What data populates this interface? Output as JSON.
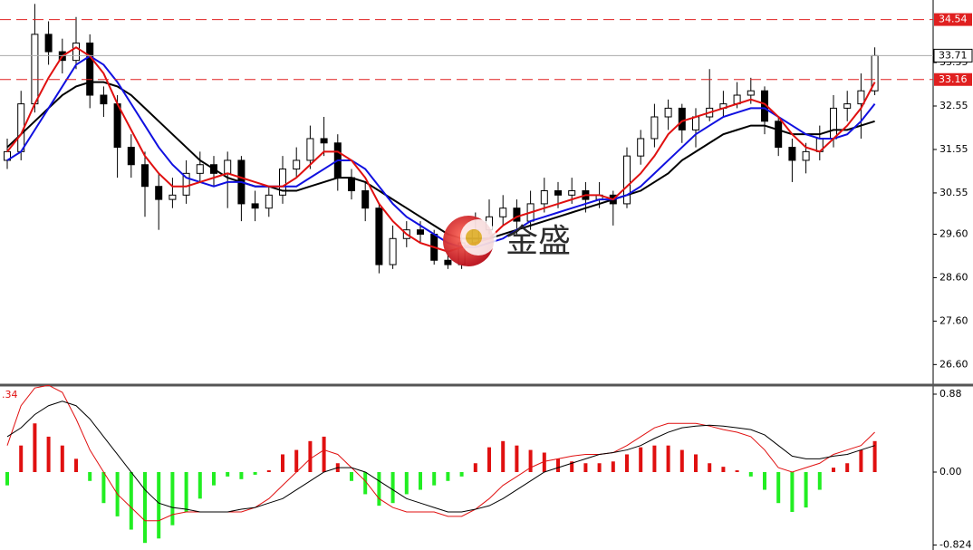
{
  "chart_data": [
    {
      "type": "candlestick",
      "watermark": "金盛",
      "up_color": "#ffffff",
      "down_color": "#000000",
      "ylim": [
        26.19,
        34.99
      ],
      "yticks": [
        {
          "value": 26.6,
          "label": "26.60"
        },
        {
          "value": 27.6,
          "label": "27.60"
        },
        {
          "value": 28.6,
          "label": "28.60"
        },
        {
          "value": 29.6,
          "label": "29.60"
        },
        {
          "value": 30.55,
          "label": "30.55"
        },
        {
          "value": 31.55,
          "label": "31.55"
        },
        {
          "value": 32.55,
          "label": "32.55"
        },
        {
          "value": 33.55,
          "label": "33.55"
        }
      ],
      "hlines": [
        {
          "value": 34.54,
          "color": "#e02020"
        },
        {
          "value": 33.16,
          "color": "#e02020"
        }
      ],
      "last": {
        "value": 33.71,
        "color": "#000000"
      },
      "open": [
        31.3,
        31.5,
        32.6,
        34.2,
        33.8,
        33.6,
        34.0,
        32.8,
        32.6,
        31.6,
        31.2,
        30.7,
        30.4,
        30.5,
        31.0,
        31.2,
        31.0,
        31.3,
        30.3,
        30.2,
        30.5,
        31.1,
        31.3,
        31.8,
        31.7,
        30.9,
        30.6,
        30.2,
        28.9,
        29.5,
        29.7,
        29.6,
        29.0,
        28.9,
        29.4,
        29.7,
        30.0,
        30.2,
        29.9,
        30.3,
        30.6,
        30.5,
        30.6,
        30.4,
        30.5,
        30.3,
        31.4,
        31.8,
        32.3,
        32.5,
        32.0,
        32.3,
        32.5,
        32.6,
        32.8,
        32.9,
        32.2,
        31.6,
        31.3,
        31.5,
        31.8,
        32.5,
        32.6,
        32.9
      ],
      "high": [
        31.8,
        32.9,
        34.9,
        34.5,
        34.1,
        34.6,
        34.2,
        33.0,
        32.8,
        31.9,
        31.5,
        31.0,
        30.9,
        31.3,
        31.5,
        31.4,
        31.5,
        31.4,
        30.6,
        30.7,
        31.4,
        31.6,
        32.1,
        32.3,
        31.9,
        31.1,
        30.8,
        30.3,
        29.8,
        29.9,
        29.9,
        29.7,
        29.2,
        29.6,
        30.1,
        30.4,
        30.5,
        30.4,
        30.6,
        30.9,
        30.8,
        30.9,
        30.8,
        30.8,
        30.6,
        31.6,
        32.0,
        32.6,
        32.7,
        32.6,
        32.5,
        33.4,
        32.9,
        33.1,
        33.2,
        33.0,
        32.3,
        31.8,
        31.7,
        32.1,
        32.8,
        32.9,
        33.3,
        33.9
      ],
      "low": [
        31.1,
        31.3,
        32.4,
        33.5,
        33.3,
        33.4,
        32.5,
        32.3,
        30.9,
        30.9,
        30.0,
        29.7,
        30.2,
        30.3,
        30.8,
        30.7,
        30.2,
        29.9,
        29.9,
        30.0,
        30.3,
        30.9,
        31.1,
        31.4,
        30.6,
        30.4,
        29.9,
        28.7,
        28.8,
        29.3,
        29.4,
        28.9,
        28.8,
        28.8,
        29.3,
        29.6,
        29.8,
        29.6,
        29.7,
        30.1,
        30.2,
        30.3,
        30.1,
        30.2,
        29.8,
        30.2,
        31.2,
        31.6,
        32.0,
        31.7,
        31.6,
        32.2,
        32.3,
        32.5,
        32.6,
        31.9,
        31.4,
        30.8,
        31.0,
        31.3,
        31.6,
        32.2,
        31.8,
        32.8
      ],
      "close": [
        31.5,
        32.6,
        34.2,
        33.8,
        33.6,
        34.0,
        32.8,
        32.6,
        31.6,
        31.2,
        30.7,
        30.4,
        30.5,
        31.0,
        31.2,
        31.0,
        31.3,
        30.3,
        30.2,
        30.5,
        31.1,
        31.3,
        31.8,
        31.7,
        30.9,
        30.6,
        30.2,
        28.9,
        29.5,
        29.7,
        29.6,
        29.0,
        28.9,
        29.4,
        29.7,
        30.0,
        30.2,
        29.9,
        30.3,
        30.6,
        30.5,
        30.6,
        30.4,
        30.5,
        30.3,
        31.4,
        31.8,
        32.3,
        32.5,
        32.0,
        32.3,
        32.5,
        32.6,
        32.8,
        32.9,
        32.2,
        31.6,
        31.3,
        31.5,
        31.8,
        32.5,
        32.6,
        32.9,
        33.71
      ],
      "lines": [
        {
          "color": "#000000",
          "values": [
            31.6,
            31.9,
            32.2,
            32.5,
            32.8,
            33.0,
            33.1,
            33.1,
            33.0,
            32.8,
            32.5,
            32.2,
            31.9,
            31.6,
            31.3,
            31.1,
            30.9,
            30.8,
            30.7,
            30.7,
            30.6,
            30.6,
            30.7,
            30.8,
            30.9,
            30.9,
            30.8,
            30.6,
            30.4,
            30.2,
            30.0,
            29.8,
            29.6,
            29.5,
            29.5,
            29.5,
            29.6,
            29.7,
            29.8,
            29.9,
            30.0,
            30.1,
            30.2,
            30.3,
            30.4,
            30.5,
            30.6,
            30.8,
            31.0,
            31.3,
            31.5,
            31.7,
            31.9,
            32.0,
            32.1,
            32.1,
            32.0,
            31.9,
            31.9,
            31.9,
            32.0,
            32.0,
            32.1,
            32.2
          ]
        },
        {
          "color": "#1010e0",
          "values": [
            31.3,
            31.5,
            32.0,
            32.5,
            33.0,
            33.5,
            33.7,
            33.5,
            33.1,
            32.6,
            32.1,
            31.6,
            31.2,
            30.9,
            30.8,
            30.7,
            30.8,
            30.8,
            30.7,
            30.7,
            30.7,
            30.7,
            30.9,
            31.1,
            31.3,
            31.3,
            31.1,
            30.7,
            30.3,
            30.0,
            29.8,
            29.6,
            29.4,
            29.3,
            29.3,
            29.4,
            29.5,
            29.7,
            29.9,
            30.0,
            30.1,
            30.2,
            30.3,
            30.4,
            30.4,
            30.5,
            30.7,
            31.0,
            31.3,
            31.6,
            31.9,
            32.1,
            32.3,
            32.4,
            32.5,
            32.5,
            32.3,
            32.1,
            31.9,
            31.8,
            31.8,
            31.9,
            32.2,
            32.6
          ]
        },
        {
          "color": "#e01010",
          "values": [
            31.5,
            31.9,
            32.6,
            33.2,
            33.7,
            33.9,
            33.7,
            33.3,
            32.6,
            32.0,
            31.4,
            31.0,
            30.7,
            30.7,
            30.8,
            30.9,
            31.0,
            30.9,
            30.8,
            30.7,
            30.7,
            30.9,
            31.2,
            31.5,
            31.5,
            31.3,
            30.9,
            30.3,
            29.9,
            29.6,
            29.4,
            29.3,
            29.2,
            29.3,
            29.4,
            29.5,
            29.8,
            30.0,
            30.1,
            30.2,
            30.3,
            30.4,
            30.5,
            30.5,
            30.4,
            30.7,
            31.0,
            31.4,
            31.9,
            32.2,
            32.3,
            32.4,
            32.5,
            32.6,
            32.7,
            32.6,
            32.3,
            31.9,
            31.6,
            31.5,
            31.8,
            32.1,
            32.5,
            33.1
          ]
        }
      ]
    },
    {
      "type": "macd",
      "label": ".34",
      "label_color": "#e01010",
      "ylim": [
        -0.88,
        0.962
      ],
      "yticks": [
        0.88,
        {
          "value": 0,
          "label": "0.00"
        },
        -0.824
      ],
      "up_color": "#e01010",
      "down_color": "#22ee22",
      "values": [
        -0.15,
        0.3,
        0.55,
        0.4,
        0.3,
        0.15,
        -0.1,
        -0.35,
        -0.5,
        -0.65,
        -0.8,
        -0.75,
        -0.6,
        -0.45,
        -0.3,
        -0.15,
        -0.05,
        -0.08,
        -0.03,
        0.02,
        0.2,
        0.25,
        0.35,
        0.4,
        0.1,
        -0.1,
        -0.25,
        -0.38,
        -0.35,
        -0.25,
        -0.2,
        -0.15,
        -0.1,
        -0.05,
        0.1,
        0.28,
        0.35,
        0.3,
        0.25,
        0.22,
        0.15,
        0.12,
        0.1,
        0.1,
        0.12,
        0.2,
        0.28,
        0.3,
        0.3,
        0.25,
        0.2,
        0.1,
        0.06,
        0.02,
        -0.05,
        -0.2,
        -0.35,
        -0.45,
        -0.4,
        -0.2,
        0.05,
        0.1,
        0.25,
        0.35
      ],
      "lines": [
        {
          "color": "#e01010",
          "values": [
            0.3,
            0.75,
            0.95,
            0.98,
            0.9,
            0.6,
            0.25,
            0.0,
            -0.25,
            -0.4,
            -0.55,
            -0.55,
            -0.48,
            -0.45,
            -0.45,
            -0.45,
            -0.45,
            -0.45,
            -0.4,
            -0.3,
            -0.15,
            0.0,
            0.15,
            0.25,
            0.2,
            0.05,
            -0.1,
            -0.3,
            -0.4,
            -0.45,
            -0.45,
            -0.45,
            -0.5,
            -0.5,
            -0.42,
            -0.3,
            -0.15,
            -0.05,
            0.05,
            0.12,
            0.15,
            0.18,
            0.2,
            0.2,
            0.22,
            0.3,
            0.4,
            0.5,
            0.55,
            0.55,
            0.55,
            0.52,
            0.48,
            0.45,
            0.4,
            0.25,
            0.05,
            0.0,
            0.05,
            0.1,
            0.2,
            0.25,
            0.3,
            0.45
          ]
        },
        {
          "color": "#000000",
          "values": [
            0.4,
            0.5,
            0.65,
            0.75,
            0.8,
            0.75,
            0.6,
            0.4,
            0.2,
            0.0,
            -0.2,
            -0.35,
            -0.4,
            -0.42,
            -0.45,
            -0.45,
            -0.45,
            -0.42,
            -0.4,
            -0.35,
            -0.3,
            -0.2,
            -0.1,
            0.0,
            0.05,
            0.05,
            0.0,
            -0.1,
            -0.2,
            -0.3,
            -0.35,
            -0.4,
            -0.45,
            -0.45,
            -0.42,
            -0.38,
            -0.3,
            -0.2,
            -0.1,
            0.0,
            0.05,
            0.1,
            0.15,
            0.2,
            0.22,
            0.25,
            0.3,
            0.38,
            0.45,
            0.5,
            0.52,
            0.53,
            0.52,
            0.5,
            0.48,
            0.42,
            0.3,
            0.18,
            0.15,
            0.15,
            0.18,
            0.2,
            0.25,
            0.3
          ]
        }
      ]
    }
  ]
}
